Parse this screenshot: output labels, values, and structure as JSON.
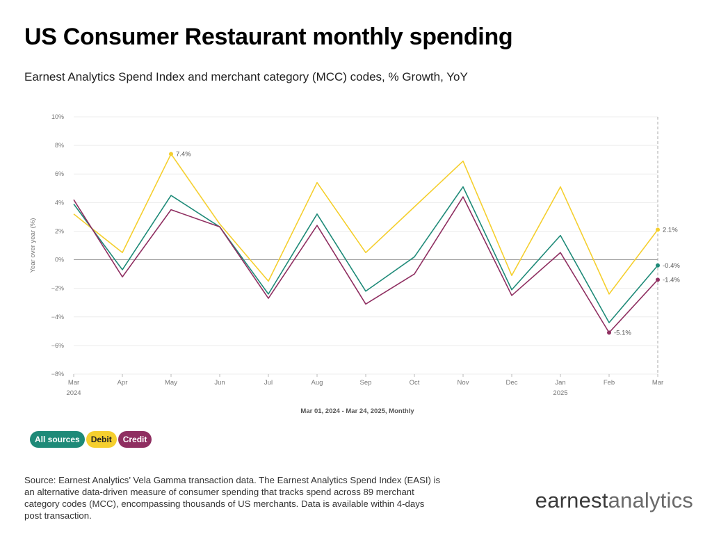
{
  "header": {
    "title": "US Consumer Restaurant monthly spending",
    "subtitle": "Earnest Analytics Spend Index and merchant category (MCC) codes, % Growth, YoY"
  },
  "chart_data": {
    "type": "line",
    "x": [
      "Mar",
      "Apr",
      "May",
      "Jun",
      "Jul",
      "Aug",
      "Sep",
      "Oct",
      "Nov",
      "Dec",
      "Jan",
      "Feb",
      "Mar"
    ],
    "x_sublabels": [
      "2024",
      "",
      "",
      "",
      "",
      "",
      "",
      "",
      "",
      "",
      "2025",
      "",
      ""
    ],
    "ylabel": "Year over year (%)",
    "xlabel": "Mar 01, 2024 - Mar 24, 2025, Monthly",
    "ylim": [
      -8,
      10
    ],
    "yticks": [
      -8,
      -6,
      -4,
      -2,
      0,
      2,
      4,
      6,
      8,
      10
    ],
    "ytick_labels": [
      "−8%",
      "−6%",
      "−4%",
      "−2%",
      "0%",
      "2%",
      "4%",
      "6%",
      "8%",
      "10%"
    ],
    "grid": true,
    "series": [
      {
        "name": "All sources",
        "color": "#1e8a78",
        "values": [
          3.9,
          -0.7,
          4.5,
          2.3,
          -2.4,
          3.2,
          -2.2,
          0.2,
          5.1,
          -2.1,
          1.7,
          -4.4,
          -0.4
        ]
      },
      {
        "name": "Debit",
        "color": "#f5cf2e",
        "values": [
          3.2,
          0.5,
          7.4,
          2.5,
          -1.5,
          5.4,
          0.5,
          3.7,
          6.9,
          -1.1,
          5.1,
          -2.4,
          2.1
        ]
      },
      {
        "name": "Credit",
        "color": "#8f2f61",
        "values": [
          4.2,
          -1.2,
          3.5,
          2.3,
          -2.7,
          2.4,
          -3.1,
          -1.0,
          4.4,
          -2.5,
          0.5,
          -5.1,
          -1.4
        ]
      }
    ],
    "annotations": [
      {
        "series": 1,
        "index": 2,
        "text": "7.4%"
      },
      {
        "series": 1,
        "index": 12,
        "text": "2.1%"
      },
      {
        "series": 0,
        "index": 12,
        "text": "-0.4%"
      },
      {
        "series": 2,
        "index": 12,
        "text": "-1.4%"
      },
      {
        "series": 2,
        "index": 11,
        "text": "-5.1%"
      }
    ]
  },
  "legend": {
    "all_sources": "All sources",
    "debit": "Debit",
    "credit": "Credit"
  },
  "footer": {
    "source": "Source: Earnest Analytics’ Vela Gamma transaction data. The Earnest Analytics Spend Index (EASI) is an alternative data-driven measure of consumer spending that tracks spend across 89 merchant category codes (MCC), encompassing thousands of US merchants. Data is available within 4-days post transaction.",
    "logo_bold": "earnest",
    "logo_light": "analytics"
  }
}
